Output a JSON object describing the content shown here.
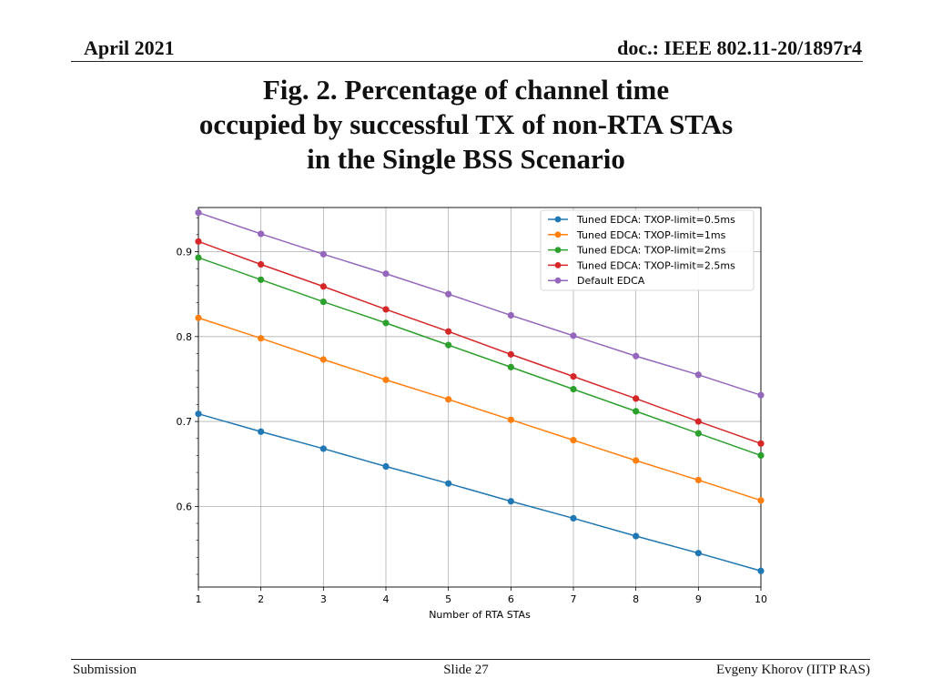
{
  "header": {
    "date": "April 2021",
    "doc": "doc.: IEEE 802.11-20/1897r4"
  },
  "title": {
    "line1": "Fig. 2. Percentage of channel time",
    "line2": "occupied by successful TX of non-RTA STAs",
    "line3": "in the Single BSS Scenario"
  },
  "chart_data": {
    "type": "line",
    "xlabel": "Number of RTA STAs",
    "ylabel": "",
    "xlim": [
      1,
      10
    ],
    "ylim": [
      0.505,
      0.952
    ],
    "x": [
      1,
      2,
      3,
      4,
      5,
      6,
      7,
      8,
      9,
      10
    ],
    "xticks": [
      "1",
      "2",
      "3",
      "4",
      "5",
      "6",
      "7",
      "8",
      "9",
      "10"
    ],
    "yticks": [
      0.6,
      0.7,
      0.8,
      0.9
    ],
    "ytick_labels": [
      "0.6",
      "0.7",
      "0.8",
      "0.9"
    ],
    "grid": true,
    "legend_position": "top-right",
    "series": [
      {
        "name": "Tuned EDCA: TXOP-limit=0.5ms",
        "color": "#1f77b4",
        "values": [
          0.709,
          0.688,
          0.668,
          0.647,
          0.627,
          0.606,
          0.586,
          0.565,
          0.545,
          0.524
        ]
      },
      {
        "name": "Tuned EDCA: TXOP-limit=1ms",
        "color": "#ff7f0e",
        "values": [
          0.822,
          0.798,
          0.773,
          0.749,
          0.726,
          0.702,
          0.678,
          0.654,
          0.631,
          0.607
        ]
      },
      {
        "name": "Tuned EDCA: TXOP-limit=2ms",
        "color": "#2ca02c",
        "values": [
          0.893,
          0.867,
          0.841,
          0.816,
          0.79,
          0.764,
          0.738,
          0.712,
          0.686,
          0.66
        ]
      },
      {
        "name": "Tuned EDCA: TXOP-limit=2.5ms",
        "color": "#d62728",
        "values": [
          0.912,
          0.885,
          0.859,
          0.832,
          0.806,
          0.779,
          0.753,
          0.727,
          0.7,
          0.674
        ]
      },
      {
        "name": "Default EDCA",
        "color": "#9467bd",
        "values": [
          0.946,
          0.921,
          0.897,
          0.874,
          0.85,
          0.825,
          0.801,
          0.777,
          0.755,
          0.731
        ]
      }
    ]
  },
  "footer": {
    "left": "Submission",
    "center": "Slide 27",
    "right": "Evgeny Khorov (IITP RAS)"
  }
}
